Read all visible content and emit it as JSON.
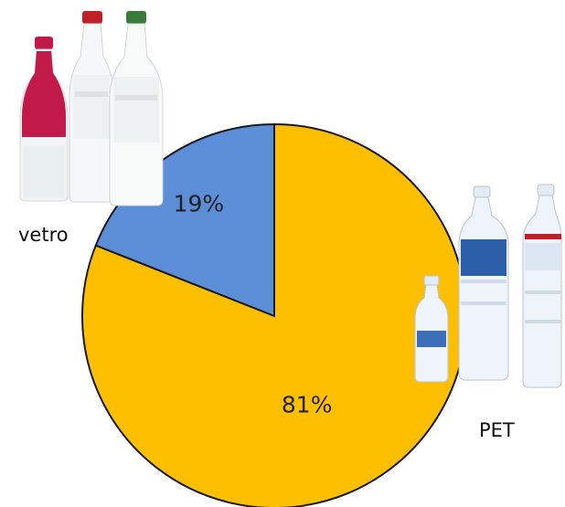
{
  "chart_data": {
    "type": "pie",
    "slices": [
      {
        "label": "vetro",
        "value": 19,
        "value_label": "19%",
        "color": "#5B8ED6"
      },
      {
        "label": "PET",
        "value": 81,
        "value_label": "81%",
        "color": "#FDBF00"
      }
    ],
    "start_angle_deg": 0,
    "direction": "counterclockwise",
    "outline_color": "#1a1a1a"
  },
  "illustrations": {
    "glass_bottles": {
      "name": "glass-bottles-illustration",
      "cap_colors": [
        "#C0194A",
        "#C0202A",
        "#3A7A3A"
      ]
    },
    "pet_bottles": {
      "name": "plastic-bottles-illustration",
      "label_colors": [
        "#3D6FB8",
        "#2B5FA8",
        "#C0202A"
      ]
    }
  }
}
